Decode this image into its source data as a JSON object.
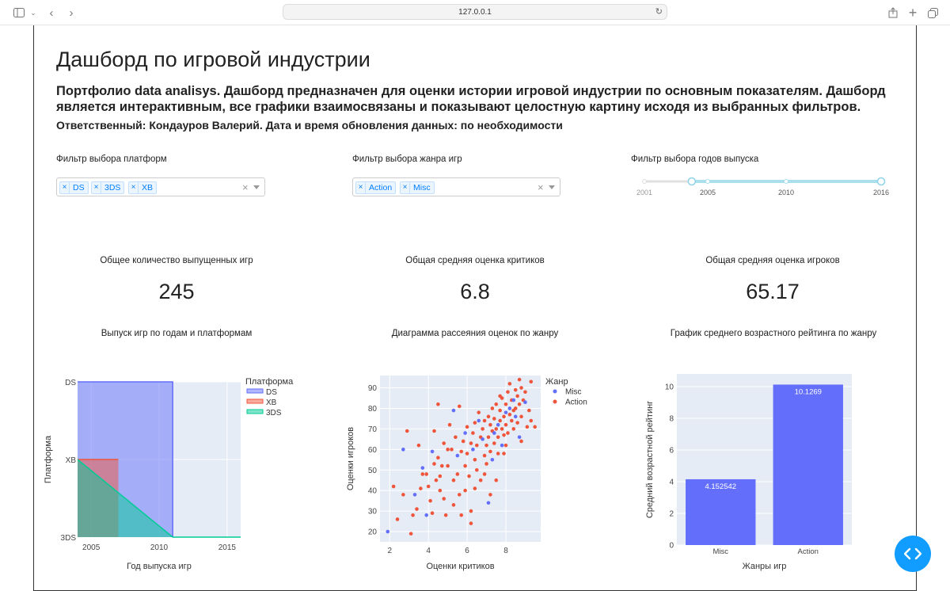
{
  "browser": {
    "url": "127.0.0.1"
  },
  "page": {
    "title": "Дашборд по игровой индустрии",
    "description": "Портфолио data analisys. Дашборд предназначен для оценки истории игровой индустрии по основным показателям. Дашборд является интерактивным, все графики взаимосвязаны и показывают целостную картину исходя из выбранных фильтров.",
    "responsible": "Ответственный: Кондауров Валерий. Дата и время обновления данных: по необходимости"
  },
  "filters": {
    "platform": {
      "label": "Фильтр выбора платформ",
      "selected": [
        "DS",
        "3DS",
        "XB"
      ]
    },
    "genre": {
      "label": "Фильтр выбора жанра игр",
      "selected": [
        "Action",
        "Misc"
      ]
    },
    "years": {
      "label": "Фильтр выбора годов выпуска",
      "marks": [
        "2001",
        "2005",
        "2010",
        "2016"
      ],
      "min": 2001,
      "max": 2016,
      "range": [
        2004,
        2016
      ]
    }
  },
  "kpis": [
    {
      "title": "Общее количество выпущенных игр",
      "value": "245"
    },
    {
      "title": "Общая средняя оценка критиков",
      "value": "6.8"
    },
    {
      "title": "Общая средняя оценка игроков",
      "value": "65.17"
    }
  ],
  "chart_titles": {
    "area": "Выпуск игр по годам и платформам",
    "scatter": "Диаграмма рассеяния оценок по жанру",
    "bar": "График среднего возрастного рейтинга по жанру"
  },
  "chart_data": [
    {
      "type": "area",
      "title": "Выпуск игр по годам и платформам",
      "xlabel": "Год выпуска игр",
      "ylabel": "Платформа",
      "legend_title": "Платформа",
      "x_ticks": [
        "2005",
        "2010",
        "2015"
      ],
      "y_categories": [
        "DS",
        "XB",
        "3DS"
      ],
      "xlim": [
        2004,
        2016
      ],
      "series": [
        {
          "name": "DS",
          "color": "#636efa",
          "points": [
            [
              2004,
              "DS"
            ],
            [
              2011,
              "DS"
            ],
            [
              2011,
              "3DS"
            ]
          ]
        },
        {
          "name": "XB",
          "color": "#ef553b",
          "points": [
            [
              2004,
              "XB"
            ],
            [
              2007,
              "XB"
            ]
          ]
        },
        {
          "name": "3DS",
          "color": "#00cc96",
          "points": [
            [
              2004,
              "XB"
            ],
            [
              2011,
              "3DS"
            ],
            [
              2016,
              "3DS"
            ]
          ]
        }
      ]
    },
    {
      "type": "scatter",
      "title": "Диаграмма рассеяния оценок по жанру",
      "xlabel": "Оценки критиков",
      "ylabel": "Оценки игроков",
      "legend_title": "Жанр",
      "xlim": [
        1.5,
        9.8
      ],
      "ylim": [
        15,
        96
      ],
      "x_ticks": [
        2,
        4,
        6,
        8
      ],
      "y_ticks": [
        20,
        30,
        40,
        50,
        60,
        70,
        80,
        90
      ],
      "series": [
        {
          "name": "Misc",
          "color": "#636efa",
          "points": [
            [
              1.9,
              20
            ],
            [
              2.7,
              60
            ],
            [
              3.3,
              38
            ],
            [
              3.9,
              28
            ],
            [
              3.7,
              51
            ],
            [
              4.2,
              59
            ],
            [
              5.3,
              79
            ],
            [
              5.5,
              57
            ],
            [
              5.9,
              68
            ],
            [
              6.3,
              60
            ],
            [
              6.6,
              74
            ],
            [
              7.1,
              34
            ],
            [
              7.4,
              68
            ],
            [
              7.6,
              72
            ],
            [
              7.8,
              62
            ],
            [
              8.0,
              78
            ],
            [
              8.2,
              80
            ],
            [
              8.4,
              84
            ],
            [
              8.7,
              66
            ],
            [
              9.0,
              83
            ],
            [
              7.3,
              55
            ],
            [
              6.8,
              65
            ],
            [
              8.5,
              76
            ]
          ]
        },
        {
          "name": "Action",
          "color": "#ef553b",
          "points": [
            [
              2.2,
              42
            ],
            [
              2.4,
              26
            ],
            [
              2.7,
              38
            ],
            [
              2.9,
              69
            ],
            [
              3.1,
              19
            ],
            [
              3.2,
              28
            ],
            [
              3.4,
              31
            ],
            [
              3.5,
              62
            ],
            [
              3.7,
              48
            ],
            [
              3.9,
              48
            ],
            [
              4.0,
              42
            ],
            [
              4.1,
              35
            ],
            [
              4.2,
              29
            ],
            [
              4.3,
              69
            ],
            [
              4.4,
              45
            ],
            [
              4.5,
              56
            ],
            [
              4.5,
              82
            ],
            [
              4.6,
              40
            ],
            [
              4.7,
              52
            ],
            [
              4.8,
              63
            ],
            [
              4.8,
              36
            ],
            [
              4.9,
              28
            ],
            [
              5.0,
              52
            ],
            [
              5.1,
              72
            ],
            [
              5.2,
              60
            ],
            [
              5.3,
              45
            ],
            [
              5.3,
              33
            ],
            [
              5.4,
              66
            ],
            [
              5.5,
              48
            ],
            [
              5.6,
              81
            ],
            [
              5.7,
              59
            ],
            [
              5.8,
              64
            ],
            [
              5.9,
              52
            ],
            [
              5.9,
              40
            ],
            [
              6.0,
              71
            ],
            [
              6.0,
              58
            ],
            [
              6.1,
              47
            ],
            [
              6.2,
              63
            ],
            [
              6.2,
              30
            ],
            [
              6.3,
              68
            ],
            [
              6.4,
              55
            ],
            [
              6.4,
              73
            ],
            [
              6.5,
              50
            ],
            [
              6.5,
              62
            ],
            [
              6.6,
              78
            ],
            [
              6.7,
              45
            ],
            [
              6.7,
              66
            ],
            [
              6.8,
              70
            ],
            [
              6.9,
              57
            ],
            [
              6.9,
              74
            ],
            [
              7.0,
              62
            ],
            [
              7.0,
              53
            ],
            [
              7.1,
              76
            ],
            [
              7.1,
              66
            ],
            [
              7.2,
              72
            ],
            [
              7.2,
              59
            ],
            [
              7.3,
              80
            ],
            [
              7.3,
              69
            ],
            [
              7.4,
              63
            ],
            [
              7.4,
              75
            ],
            [
              7.5,
              70
            ],
            [
              7.5,
              82
            ],
            [
              7.6,
              66
            ],
            [
              7.6,
              58
            ],
            [
              7.7,
              74
            ],
            [
              7.7,
              79
            ],
            [
              7.8,
              70
            ],
            [
              7.8,
              85
            ],
            [
              7.9,
              67
            ],
            [
              7.9,
              76
            ],
            [
              8.0,
              82
            ],
            [
              8.0,
              72
            ],
            [
              8.1,
              88
            ],
            [
              8.1,
              68
            ],
            [
              8.2,
              77
            ],
            [
              8.2,
              92
            ],
            [
              8.3,
              74
            ],
            [
              8.3,
              84
            ],
            [
              8.4,
              79
            ],
            [
              8.4,
              70
            ],
            [
              8.5,
              89
            ],
            [
              8.5,
              80
            ],
            [
              8.6,
              73
            ],
            [
              8.6,
              86
            ],
            [
              8.7,
              82
            ],
            [
              8.7,
              94
            ],
            [
              8.8,
              76
            ],
            [
              8.8,
              90
            ],
            [
              8.9,
              84
            ],
            [
              9.0,
              88
            ],
            [
              9.1,
              71
            ],
            [
              9.2,
              79
            ],
            [
              9.3,
              74
            ],
            [
              9.3,
              93
            ],
            [
              9.5,
              71
            ],
            [
              7.5,
              45
            ],
            [
              6.2,
              24
            ],
            [
              5.6,
              38
            ],
            [
              4.6,
              47
            ],
            [
              3.6,
              41
            ],
            [
              7.9,
              58
            ],
            [
              8.8,
              64
            ],
            [
              6.9,
              48
            ],
            [
              5.0,
              60
            ],
            [
              4.3,
              53
            ],
            [
              7.2,
              38
            ],
            [
              6.4,
              41
            ],
            [
              5.7,
              28
            ],
            [
              8.0,
              62
            ],
            [
              7.7,
              86
            ]
          ]
        }
      ]
    },
    {
      "type": "bar",
      "title": "График среднего возрастного рейтинга по жанру",
      "xlabel": "Жанры игр",
      "ylabel": "Средний возрастной рейтинг",
      "categories": [
        "Misc",
        "Action"
      ],
      "values": [
        4.152542,
        10.1269
      ],
      "labels": [
        "4.152542",
        "10.1269"
      ],
      "ylim": [
        0,
        10.8
      ],
      "y_ticks": [
        0,
        2,
        4,
        6,
        8,
        10
      ],
      "color": "#636efa"
    }
  ]
}
